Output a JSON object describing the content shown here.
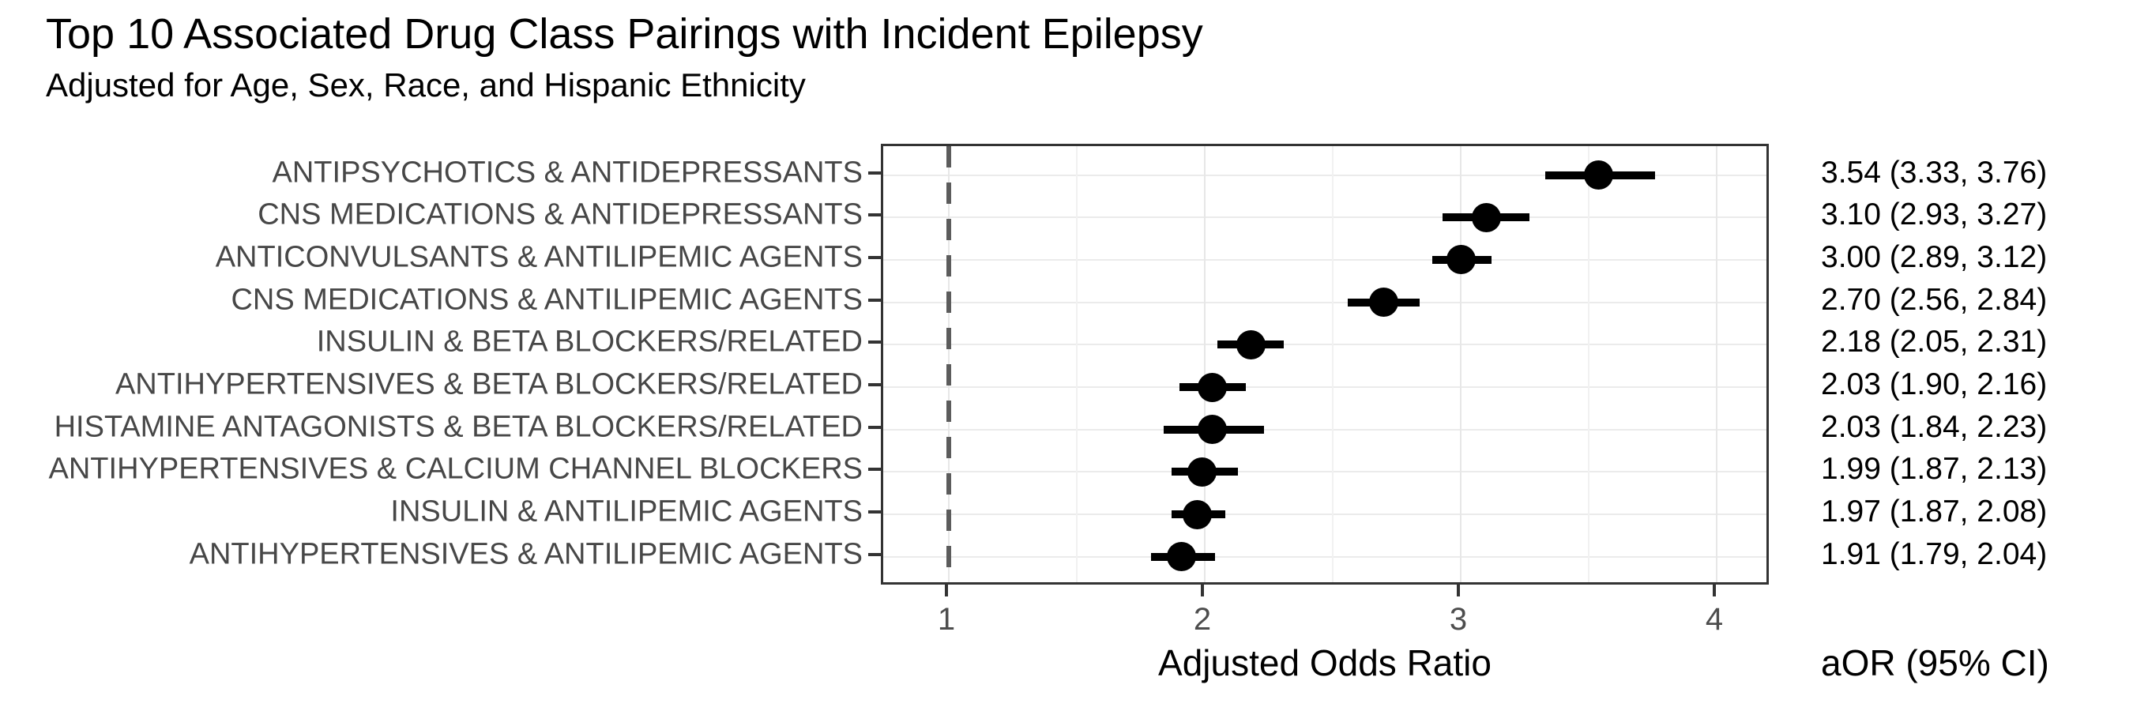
{
  "title": "Top 10 Associated Drug Class Pairings with Incident Epilepsy",
  "subtitle": "Adjusted for Age, Sex, Race, and Hispanic Ethnicity",
  "chart_data": {
    "type": "scatter",
    "subtype": "forest-plot-dot-whisker",
    "orientation": "horizontal",
    "title": "Top 10 Associated Drug Class Pairings with Incident Epilepsy",
    "subtitle": "Adjusted for Age, Sex, Race, and Hispanic Ethnicity",
    "xlabel": "Adjusted Odds Ratio",
    "ylabel": "",
    "xlim": [
      0.74,
      4.21
    ],
    "x_ticks": [
      1,
      2,
      3,
      4
    ],
    "x_tick_labels": [
      "1",
      "2",
      "3",
      "4"
    ],
    "x_minor_gridlines": [
      1.5,
      2.5,
      3.5
    ],
    "reference_line_x": 1,
    "grid": "on",
    "legend": "none",
    "value_column_header": "aOR (95% CI)",
    "rows": [
      {
        "label": "ANTIPSYCHOTICS & ANTIDEPRESSANTS",
        "aor": 3.54,
        "ci_low": 3.33,
        "ci_high": 3.76,
        "value_text": "3.54 (3.33, 3.76)"
      },
      {
        "label": "CNS MEDICATIONS & ANTIDEPRESSANTS",
        "aor": 3.1,
        "ci_low": 2.93,
        "ci_high": 3.27,
        "value_text": "3.10 (2.93, 3.27)"
      },
      {
        "label": "ANTICONVULSANTS & ANTILIPEMIC AGENTS",
        "aor": 3.0,
        "ci_low": 2.89,
        "ci_high": 3.12,
        "value_text": "3.00 (2.89, 3.12)"
      },
      {
        "label": "CNS MEDICATIONS & ANTILIPEMIC AGENTS",
        "aor": 2.7,
        "ci_low": 2.56,
        "ci_high": 2.84,
        "value_text": "2.70 (2.56, 2.84)"
      },
      {
        "label": "INSULIN & BETA BLOCKERS/RELATED",
        "aor": 2.18,
        "ci_low": 2.05,
        "ci_high": 2.31,
        "value_text": "2.18 (2.05, 2.31)"
      },
      {
        "label": "ANTIHYPERTENSIVES & BETA BLOCKERS/RELATED",
        "aor": 2.03,
        "ci_low": 1.9,
        "ci_high": 2.16,
        "value_text": "2.03 (1.90, 2.16)"
      },
      {
        "label": "HISTAMINE ANTAGONISTS & BETA BLOCKERS/RELATED",
        "aor": 2.03,
        "ci_low": 1.84,
        "ci_high": 2.23,
        "value_text": "2.03 (1.84, 2.23)"
      },
      {
        "label": "ANTIHYPERTENSIVES & CALCIUM CHANNEL BLOCKERS",
        "aor": 1.99,
        "ci_low": 1.87,
        "ci_high": 2.13,
        "value_text": "1.99 (1.87, 2.13)"
      },
      {
        "label": "INSULIN & ANTILIPEMIC AGENTS",
        "aor": 1.97,
        "ci_low": 1.87,
        "ci_high": 2.08,
        "value_text": "1.97 (1.87, 2.08)"
      },
      {
        "label": "ANTIHYPERTENSIVES & ANTILIPEMIC AGENTS",
        "aor": 1.91,
        "ci_low": 1.79,
        "ci_high": 2.04,
        "value_text": "1.91 (1.79, 2.04)"
      }
    ]
  },
  "colors": {
    "background": "#ffffff",
    "panel_border": "#333333",
    "gridline_major": "#e7e7e7",
    "gridline_row": "#ebebeb",
    "reference_line": "#5c5c5c",
    "point_and_whisker": "#000000",
    "axis_text": "#4d4d4d",
    "y_label_text": "#474747",
    "title_text": "#000000"
  }
}
